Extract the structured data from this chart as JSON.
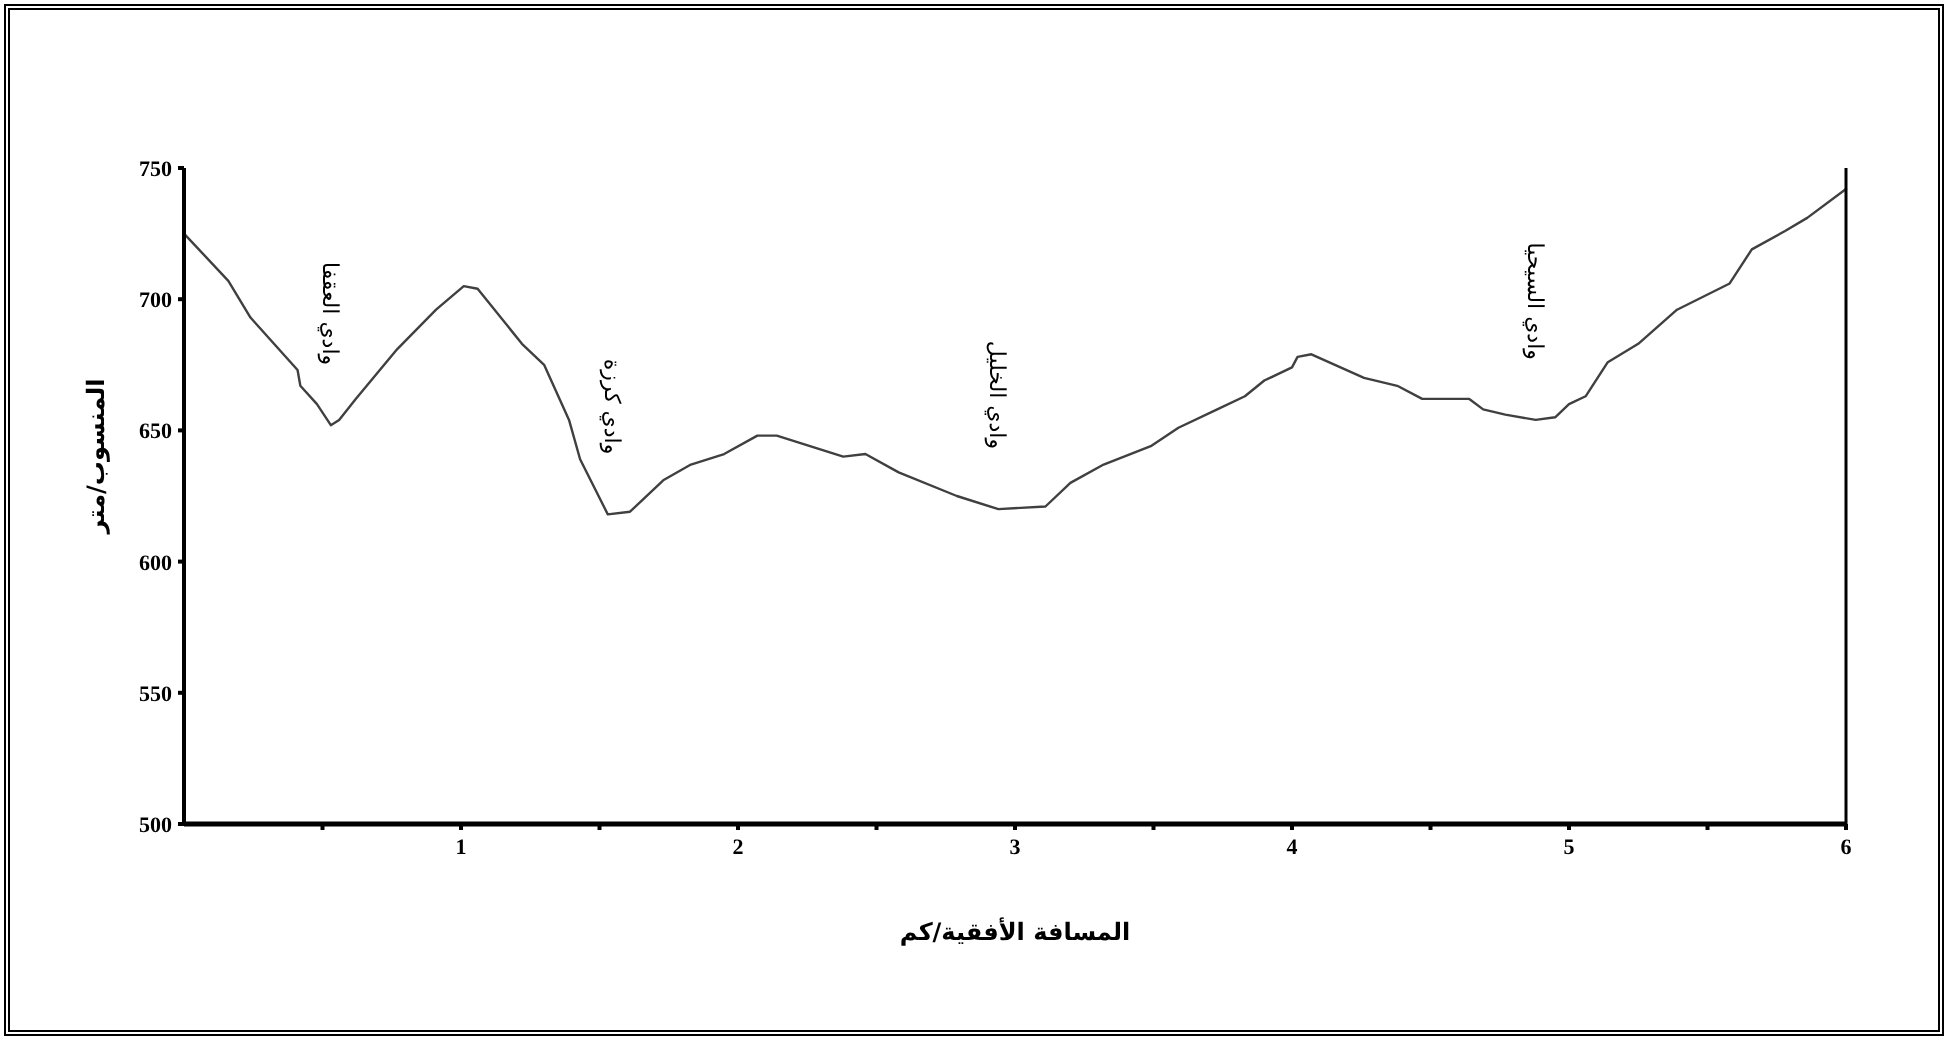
{
  "chart_data": {
    "type": "line",
    "xlabel": "المسافة الأفقية/كم",
    "ylabel": "المنسوب/متر",
    "xlim": [
      0,
      6
    ],
    "ylim": [
      500,
      750
    ],
    "xticks": [
      {
        "value": 0.5,
        "label": null
      },
      1,
      {
        "value": 1.5,
        "label": null
      },
      2,
      {
        "value": 2.5,
        "label": null
      },
      3,
      {
        "value": 3.5,
        "label": null
      },
      4,
      {
        "value": 4.5,
        "label": null
      },
      5,
      {
        "value": 5.5,
        "label": null
      },
      6
    ],
    "yticks": [
      500,
      550,
      600,
      650,
      700,
      750
    ],
    "grid": false,
    "marker": "none",
    "line_style": "solid",
    "annotations": [
      {
        "text": "وادي العقفا",
        "x": 0.53,
        "y": 652
      },
      {
        "text": "وادي كرزة",
        "x": 1.55,
        "y": 618
      },
      {
        "text": "وادي الخليل",
        "x": 2.94,
        "y": 620
      },
      {
        "text": "وادي السيحيا",
        "x": 4.88,
        "y": 654
      }
    ],
    "series": [
      {
        "color": "#404040",
        "x": [
          0,
          0.16,
          0.24,
          0.41,
          0.42,
          0.48,
          0.53,
          0.56,
          0.62,
          0.77,
          0.91,
          1.01,
          1.06,
          1.22,
          1.3,
          1.39,
          1.43,
          1.53,
          1.61,
          1.73,
          1.83,
          1.95,
          2.07,
          2.14,
          2.38,
          2.46,
          2.58,
          2.79,
          2.94,
          3.11,
          3.2,
          3.32,
          3.49,
          3.59,
          3.73,
          3.83,
          3.9,
          4.0,
          4.02,
          4.07,
          4.26,
          4.38,
          4.47,
          4.64,
          4.69,
          4.77,
          4.88,
          4.95,
          5.0,
          5.06,
          5.14,
          5.25,
          5.39,
          5.58,
          5.66,
          5.78,
          5.86,
          6.0
        ],
        "values": [
          725,
          707,
          693,
          673,
          667,
          660,
          652,
          654,
          662,
          681,
          696,
          705,
          704,
          683,
          675,
          654,
          639,
          618,
          619,
          631,
          637,
          641,
          648,
          648,
          640,
          641,
          634,
          625,
          620,
          621,
          630,
          637,
          644,
          651,
          658,
          663,
          669,
          674,
          678,
          679,
          670,
          667,
          662,
          662,
          658,
          656,
          654,
          655,
          660,
          663,
          676,
          683,
          696,
          706,
          719,
          726,
          731,
          742
        ]
      }
    ]
  }
}
